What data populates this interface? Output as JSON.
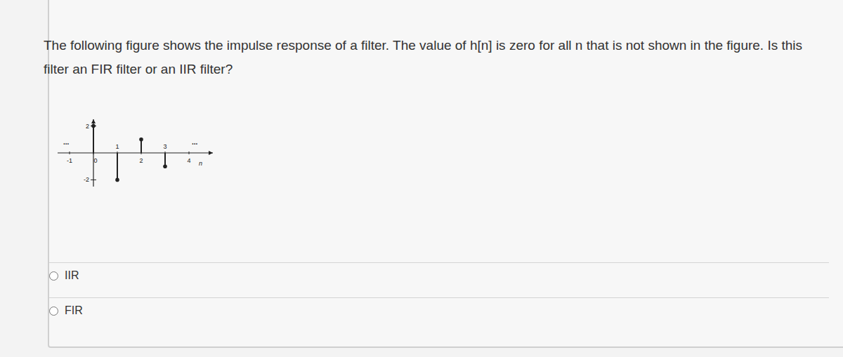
{
  "question": "The following figure shows the impulse response of a filter. The value of h[n] is zero for all n that is not shown in the figure. Is this filter an FIR filter or an IIR filter?",
  "chart_data": {
    "type": "stem",
    "xlabel": "n",
    "x": [
      0,
      1,
      2,
      3
    ],
    "values": [
      2,
      -2,
      1,
      -1
    ],
    "xlim": [
      -1.5,
      5
    ],
    "xticks": [
      -1,
      0,
      1,
      2,
      3,
      4
    ],
    "ylim": [
      -2.5,
      2.5
    ],
    "yticks": [
      -2,
      2
    ],
    "annotations": [
      "...",
      "..."
    ],
    "color": "#222222"
  },
  "options": [
    "IIR",
    "FIR"
  ]
}
